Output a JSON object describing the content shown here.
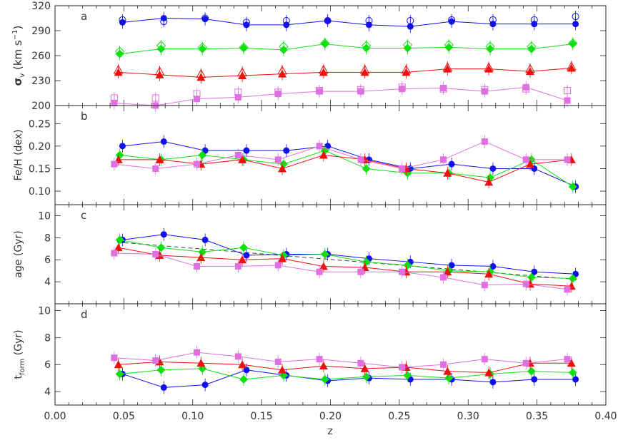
{
  "figure": {
    "xlabel": "z"
  },
  "colors": {
    "blue": "#1010ee",
    "green": "#10e010",
    "red": "#ee1010",
    "violet": "#e070e0",
    "axis": "#222222"
  },
  "chart_data": [
    {
      "type": "scatter",
      "panel_letter": "a",
      "ylabel": "σ_v (km s⁻¹)",
      "xlim": [
        0.0,
        0.4
      ],
      "ylim": [
        200,
        320
      ],
      "yticks": [
        "200",
        "230",
        "260",
        "290",
        "320"
      ],
      "series": [
        {
          "color": "blue",
          "marker": "circle",
          "x": [
            0.049,
            0.079,
            0.109,
            0.139,
            0.168,
            0.198,
            0.228,
            0.258,
            0.288,
            0.318,
            0.348,
            0.378
          ],
          "y": [
            300,
            305,
            304,
            297,
            297,
            302,
            297,
            295,
            301,
            298,
            298,
            298
          ],
          "open_y": [
            303,
            301,
            305,
            300,
            302,
            302,
            302,
            302,
            303,
            303,
            303,
            307
          ]
        },
        {
          "color": "green",
          "marker": "diamond",
          "x": [
            0.047,
            0.077,
            0.107,
            0.137,
            0.166,
            0.196,
            0.226,
            0.256,
            0.286,
            0.316,
            0.346,
            0.376
          ],
          "y": [
            262,
            268,
            268,
            269,
            267,
            274,
            269,
            269,
            270,
            268,
            268,
            274
          ],
          "open_y": [
            265,
            272,
            270,
            270,
            271,
            275,
            272,
            273,
            273,
            271,
            271,
            275
          ]
        },
        {
          "color": "red",
          "marker": "triangle",
          "x": [
            0.046,
            0.076,
            0.106,
            0.136,
            0.165,
            0.195,
            0.225,
            0.255,
            0.285,
            0.315,
            0.345,
            0.375
          ],
          "y": [
            240,
            237,
            234,
            236,
            238,
            240,
            240,
            240,
            244,
            244,
            241,
            245
          ],
          "open_y": [
            243,
            241,
            238,
            240,
            242,
            243,
            243,
            243,
            246,
            246,
            244,
            247
          ]
        },
        {
          "color": "violet",
          "marker": "square",
          "x": [
            0.043,
            0.073,
            0.103,
            0.133,
            0.162,
            0.192,
            0.222,
            0.252,
            0.282,
            0.312,
            0.342,
            0.372
          ],
          "y": [
            203,
            200,
            208,
            210,
            214,
            217,
            217,
            220,
            221,
            217,
            222,
            206
          ],
          "open_y": [
            209,
            209,
            214,
            216,
            216,
            218,
            219,
            222,
            220,
            219,
            220,
            218
          ]
        }
      ]
    },
    {
      "type": "line",
      "panel_letter": "b",
      "ylabel": "Fe/H (dex)",
      "xlim": [
        0.0,
        0.4
      ],
      "ylim": [
        0.07,
        0.29
      ],
      "yticks": [
        "0.10",
        "0.15",
        "0.20",
        "0.25"
      ],
      "series": [
        {
          "color": "blue",
          "marker": "circle",
          "x": [
            0.049,
            0.079,
            0.109,
            0.139,
            0.168,
            0.198,
            0.228,
            0.258,
            0.288,
            0.318,
            0.348,
            0.378
          ],
          "y": [
            0.2,
            0.21,
            0.19,
            0.19,
            0.19,
            0.2,
            0.17,
            0.15,
            0.16,
            0.15,
            0.15,
            0.11
          ]
        },
        {
          "color": "green",
          "marker": "diamond",
          "x": [
            0.047,
            0.077,
            0.107,
            0.137,
            0.166,
            0.196,
            0.226,
            0.256,
            0.286,
            0.316,
            0.346,
            0.376
          ],
          "y": [
            0.18,
            0.17,
            0.18,
            0.17,
            0.16,
            0.19,
            0.15,
            0.14,
            0.14,
            0.13,
            0.17,
            0.11
          ]
        },
        {
          "color": "red",
          "marker": "triangle",
          "x": [
            0.046,
            0.076,
            0.106,
            0.136,
            0.165,
            0.195,
            0.225,
            0.255,
            0.285,
            0.315,
            0.345,
            0.375
          ],
          "y": [
            0.17,
            0.17,
            0.16,
            0.17,
            0.15,
            0.18,
            0.17,
            0.15,
            0.14,
            0.12,
            0.16,
            0.17
          ]
        },
        {
          "color": "violet",
          "marker": "square",
          "x": [
            0.043,
            0.073,
            0.103,
            0.133,
            0.162,
            0.192,
            0.222,
            0.252,
            0.282,
            0.312,
            0.342,
            0.372
          ],
          "y": [
            0.16,
            0.15,
            0.16,
            0.18,
            0.17,
            0.2,
            0.17,
            0.15,
            0.17,
            0.21,
            0.17,
            0.17
          ]
        }
      ]
    },
    {
      "type": "line",
      "panel_letter": "c",
      "ylabel": "age (Gyr)",
      "xlim": [
        0.0,
        0.4
      ],
      "ylim": [
        2,
        11
      ],
      "yticks": [
        "4",
        "6",
        "8",
        "10"
      ],
      "series": [
        {
          "color": "blue",
          "marker": "circle",
          "x": [
            0.049,
            0.079,
            0.109,
            0.139,
            0.168,
            0.198,
            0.228,
            0.258,
            0.288,
            0.318,
            0.348,
            0.378
          ],
          "y": [
            7.8,
            8.3,
            7.8,
            6.4,
            6.5,
            6.5,
            6.1,
            5.8,
            5.5,
            5.4,
            4.9,
            4.7
          ]
        },
        {
          "color": "green",
          "marker": "diamond",
          "x": [
            0.047,
            0.077,
            0.107,
            0.137,
            0.166,
            0.196,
            0.226,
            0.256,
            0.286,
            0.316,
            0.346,
            0.376
          ],
          "y": [
            7.8,
            7.1,
            6.7,
            7.1,
            6.4,
            6.5,
            5.8,
            5.5,
            5.0,
            4.9,
            4.4,
            4.3
          ]
        },
        {
          "color": "red",
          "marker": "triangle",
          "x": [
            0.046,
            0.076,
            0.106,
            0.136,
            0.165,
            0.195,
            0.225,
            0.255,
            0.285,
            0.315,
            0.345,
            0.375
          ],
          "y": [
            7.1,
            6.4,
            6.2,
            6.0,
            6.1,
            5.4,
            5.3,
            4.9,
            4.9,
            4.7,
            3.8,
            3.6
          ]
        },
        {
          "color": "violet",
          "marker": "square",
          "x": [
            0.043,
            0.073,
            0.103,
            0.133,
            0.162,
            0.192,
            0.222,
            0.252,
            0.282,
            0.312,
            0.342,
            0.372
          ],
          "y": [
            6.6,
            6.5,
            5.4,
            5.4,
            5.5,
            4.9,
            4.9,
            4.9,
            4.4,
            3.7,
            3.8,
            3.3
          ]
        }
      ],
      "dashed_line": {
        "x": [
          0.045,
          0.38
        ],
        "y": [
          7.6,
          4.2
        ]
      }
    },
    {
      "type": "line",
      "panel_letter": "d",
      "ylabel": "t_form (Gyr)",
      "xlim": [
        0.0,
        0.4
      ],
      "ylim": [
        3,
        10.5
      ],
      "yticks": [
        "4",
        "6",
        "8",
        "10"
      ],
      "xticks": [
        "0.00",
        "0.05",
        "0.10",
        "0.15",
        "0.20",
        "0.25",
        "0.30",
        "0.35",
        "0.40"
      ],
      "series": [
        {
          "color": "blue",
          "marker": "circle",
          "x": [
            0.049,
            0.079,
            0.109,
            0.139,
            0.168,
            0.198,
            0.228,
            0.258,
            0.288,
            0.318,
            0.348,
            0.378
          ],
          "y": [
            5.3,
            4.3,
            4.5,
            5.6,
            5.2,
            4.8,
            5.0,
            4.9,
            4.9,
            4.7,
            4.9,
            4.9
          ]
        },
        {
          "color": "green",
          "marker": "diamond",
          "x": [
            0.047,
            0.077,
            0.107,
            0.137,
            0.166,
            0.196,
            0.226,
            0.256,
            0.286,
            0.316,
            0.346,
            0.376
          ],
          "y": [
            5.3,
            5.6,
            5.7,
            4.9,
            5.2,
            4.9,
            5.1,
            5.2,
            5.0,
            5.3,
            5.5,
            5.4
          ]
        },
        {
          "color": "red",
          "marker": "triangle",
          "x": [
            0.046,
            0.076,
            0.106,
            0.136,
            0.165,
            0.195,
            0.225,
            0.255,
            0.285,
            0.315,
            0.345,
            0.375
          ],
          "y": [
            6.0,
            6.2,
            6.1,
            6.0,
            5.6,
            5.9,
            5.7,
            5.8,
            5.5,
            5.4,
            6.1,
            6.1
          ]
        },
        {
          "color": "violet",
          "marker": "square",
          "x": [
            0.043,
            0.073,
            0.103,
            0.133,
            0.162,
            0.192,
            0.222,
            0.252,
            0.282,
            0.312,
            0.342,
            0.372
          ],
          "y": [
            6.5,
            6.3,
            6.9,
            6.6,
            6.2,
            6.4,
            6.1,
            5.8,
            6.0,
            6.4,
            6.1,
            6.4
          ]
        }
      ]
    }
  ]
}
